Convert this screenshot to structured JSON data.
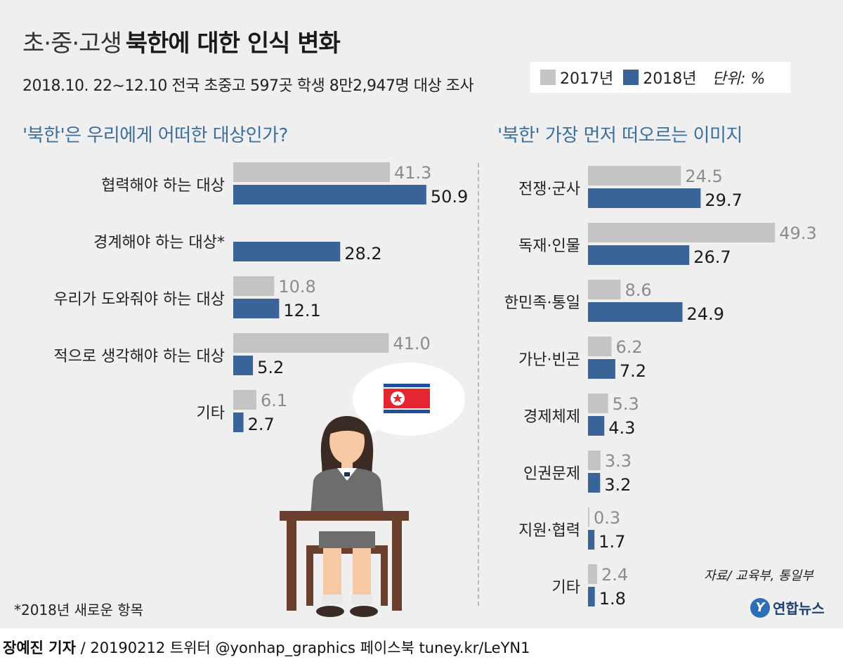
{
  "header": {
    "title_light": "초·중·고생",
    "title_bold": "북한에 대한 인식 변화",
    "subtitle": "2018.10. 22∼12.10 전국 초중고 597곳 학생 8만2,947명 대상 조사"
  },
  "legend": {
    "items": [
      {
        "label": "2017년",
        "color": "#c4c4c4"
      },
      {
        "label": "2018년",
        "color": "#3a6398"
      }
    ],
    "unit": "단위: %"
  },
  "colors": {
    "s2017": "#c4c4c4",
    "s2018": "#3a6398",
    "question": "#3a6f9e",
    "label2017": "#8c8c8c"
  },
  "chart_data": [
    {
      "type": "bar",
      "title": "'북한'은 우리에게 어떠한 대상인가?",
      "orientation": "horizontal",
      "categories": [
        "협력해야 하는 대상",
        "경계해야 하는 대상*",
        "우리가 도와줘야 하는 대상",
        "적으로 생각해야 하는 대상",
        "기타"
      ],
      "series": [
        {
          "name": "2017년",
          "values": [
            41.3,
            null,
            10.8,
            41.0,
            6.1
          ]
        },
        {
          "name": "2018년",
          "values": [
            50.9,
            28.2,
            12.1,
            5.2,
            2.7
          ]
        }
      ],
      "value_labels_2017": [
        "41.3",
        "",
        "10.8",
        "41.0",
        "6.1"
      ],
      "value_labels_2018": [
        "50.9",
        "28.2",
        "12.1",
        "5.2",
        "2.7"
      ],
      "xlim": [
        0,
        60
      ]
    },
    {
      "type": "bar",
      "title": "'북한' 가장 먼저 떠오르는 이미지",
      "orientation": "horizontal",
      "categories": [
        "전쟁·군사",
        "독재·인물",
        "한민족·통일",
        "가난·빈곤",
        "경제체제",
        "인권문제",
        "지원·협력",
        "기타"
      ],
      "series": [
        {
          "name": "2017년",
          "values": [
            24.5,
            49.3,
            8.6,
            6.2,
            5.3,
            3.3,
            0.3,
            2.4
          ]
        },
        {
          "name": "2018년",
          "values": [
            29.7,
            26.7,
            24.9,
            7.2,
            4.3,
            3.2,
            1.7,
            1.8
          ]
        }
      ],
      "value_labels_2017": [
        "24.5",
        "49.3",
        "8.6",
        "6.2",
        "5.3",
        "3.3",
        "0.3",
        "2.4"
      ],
      "value_labels_2018": [
        "29.7",
        "26.7",
        "24.9",
        "7.2",
        "4.3",
        "3.2",
        "1.7",
        "1.8"
      ],
      "xlim": [
        0,
        55
      ]
    }
  ],
  "footnote": "*2018년 새로운 항목",
  "source": "자료/ 교육부, 통일부",
  "logo": {
    "mark": "Y",
    "text": "연합뉴스"
  },
  "credit": {
    "author": "장예진 기자",
    "rest": " / 20190212 트위터 @yonhap_graphics  페이스북 tuney.kr/LeYN1"
  },
  "illustration": {
    "icons": [
      "student-icon",
      "desk-icon",
      "speech-bubble-icon",
      "dprk-flag-icon"
    ]
  }
}
